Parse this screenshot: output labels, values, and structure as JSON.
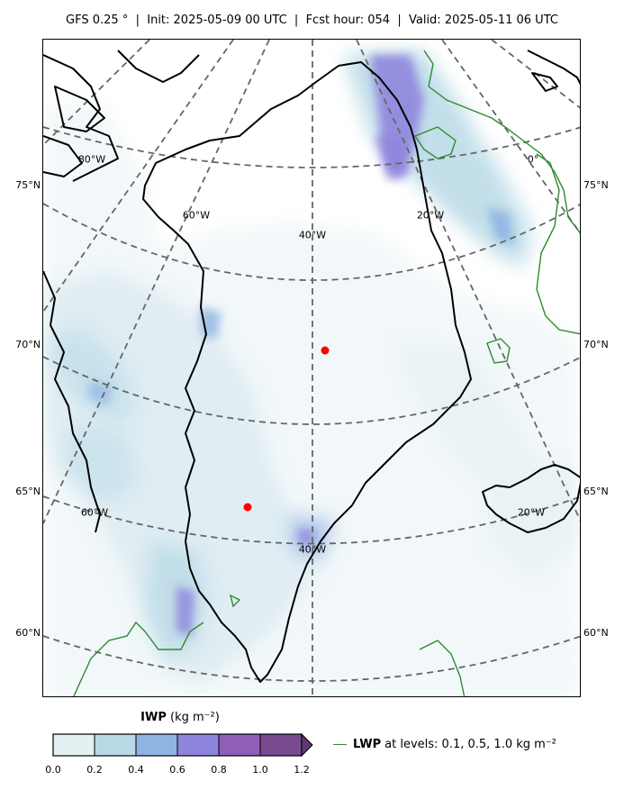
{
  "title": "GFS 0.25 °  |  Init: 2025-05-09 00 UTC  |  Fcst hour: 054  |  Valid: 2025-05-11 06 UTC",
  "map": {
    "latitude_labels": [
      "75°N",
      "70°N",
      "65°N",
      "60°N"
    ],
    "longitude_labels": [
      "80°W",
      "60°W",
      "40°W",
      "20°W",
      "0°",
      "60°W",
      "40°W",
      "20°W"
    ],
    "markers": [
      {
        "name": "red-dot-north",
        "color": "#ff0000"
      },
      {
        "name": "red-dot-south",
        "color": "#ff0000"
      }
    ],
    "colors": {
      "coastline": "#000000",
      "graticule": "#666666",
      "lwp_contour": "#2e8b2e"
    }
  },
  "colorbar": {
    "variable": "IWP",
    "units": "(kg m⁻²)",
    "ticks": [
      "0.0",
      "0.2",
      "0.4",
      "0.6",
      "0.8",
      "1.0",
      "1.2"
    ],
    "range": [
      0.0,
      1.2
    ],
    "extend": "max",
    "colors": [
      "#e4f0f2",
      "#b8d9e6",
      "#8fb3e3",
      "#8f85dd",
      "#8f5fb8",
      "#7a4a90",
      "#5c3a6e"
    ]
  },
  "legend": {
    "variable": "LWP",
    "text": "at levels: 0.1, 0.5, 1.0  kg m⁻²"
  }
}
